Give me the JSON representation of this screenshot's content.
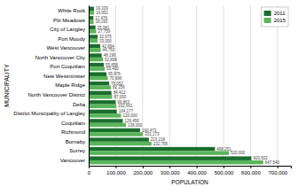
{
  "chart_data": {
    "type": "bar",
    "orientation": "horizontal",
    "categories": [
      "Vancouver",
      "Surrey",
      "Burnaby",
      "Richmond",
      "Coquitlam",
      "District Municipality of Langley",
      "Delta",
      "North Vancouver District",
      "Maple Ridge",
      "New Westminster",
      "Port Coquitlam",
      "North Vancouver City",
      "West Vancouver",
      "Port Moody",
      "City of Langley",
      "Pitt Meadows",
      "White Rock"
    ],
    "series": [
      {
        "name": "2011",
        "color": "#1a6e2e",
        "values": [
          603502,
          468251,
          223218,
          190473,
          126456,
          104177,
          99863,
          84412,
          76052,
          65976,
          55858,
          48196,
          42694,
          32975,
          25081,
          17476,
          19339
        ],
        "value_labels": [
          "603,502",
          "468,251",
          "223,218",
          "190,473",
          "126,456",
          "104,177",
          "99,863",
          "84,412",
          "76,052",
          "65,976",
          "55,858",
          "48,196",
          "42,694",
          "32,975",
          "25,081",
          "17,476",
          "19,339"
        ]
      },
      {
        "name": "2015",
        "color": "#5ab55a",
        "values": [
          647540,
          520000,
          232755,
          201173,
          138000,
          120000,
          102661,
          87000,
          82256,
          70996,
          59400,
          52898,
          44750,
          33000,
          27759,
          18193,
          19952
        ],
        "value_labels": [
          "647,540",
          "520,000",
          "232,755",
          "201,173",
          "138,000",
          "120,000",
          "102,661",
          "87,000",
          "82,256",
          "70,996",
          "59,400",
          "52,898",
          "44,750",
          "33,000",
          "27,759",
          "18,193",
          "19,952"
        ]
      }
    ],
    "xlabel": "POPULATION",
    "ylabel": "MUNICIPALITY",
    "xlim": [
      0,
      750000
    ],
    "xticks": [
      0,
      {
        "value": 100000,
        "label": "100,000"
      },
      {
        "value": 200000,
        "label": "200,000"
      },
      {
        "value": 300000,
        "label": "300,000"
      },
      {
        "value": 400000,
        "label": "400,000"
      },
      {
        "value": 500000,
        "label": "500,000"
      },
      {
        "value": 600000,
        "label": "600,000"
      },
      {
        "value": 700000,
        "label": "700,000"
      }
    ],
    "grid": true,
    "legend": "upper right",
    "data_labels": true
  }
}
